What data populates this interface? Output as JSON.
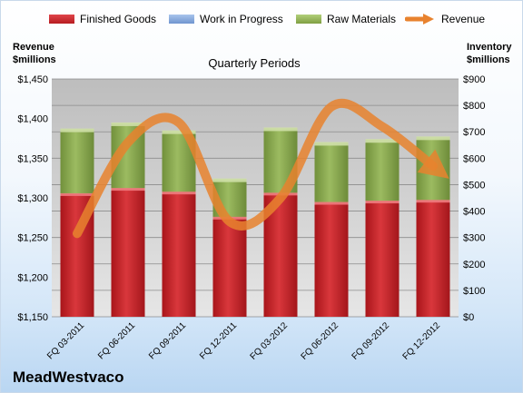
{
  "legend": {
    "finished_goods": "Finished Goods",
    "work_in_progress": "Work in Progress",
    "raw_materials": "Raw Materials",
    "revenue": "Revenue"
  },
  "left_axis_title": [
    "Revenue",
    "$millions"
  ],
  "right_axis_title": [
    "Inventory",
    "$millions"
  ],
  "subtitle": "Quarterly Periods",
  "brand": "MeadWestvaco",
  "colors": {
    "finished_goods": "#c62a2e",
    "work_in_progress": "#7ea1d6",
    "raw_materials": "#8fae54",
    "revenue": "#e8822e",
    "plot_bg": "#c0c0c0"
  },
  "chart_data": {
    "type": "bar",
    "stacked": true,
    "categories": [
      "FQ 03-2011",
      "FQ 06-2011",
      "FQ 09-2011",
      "FQ 12-2011",
      "FQ 03-2012",
      "FQ 06-2012",
      "FQ 09-2012",
      "FQ 12-2012"
    ],
    "series": [
      {
        "name": "Finished Goods",
        "axis": "right",
        "values": [
          464,
          484,
          470,
          375,
          466,
          431,
          436,
          439
        ]
      },
      {
        "name": "Work in Progress",
        "axis": "right",
        "values": [
          0,
          0,
          0,
          0,
          0,
          0,
          0,
          0
        ]
      },
      {
        "name": "Raw Materials",
        "axis": "right",
        "values": [
          245,
          248,
          232,
          145,
          247,
          227,
          233,
          240
        ]
      },
      {
        "name": "Revenue",
        "axis": "left",
        "type": "line",
        "values": [
          1255,
          1370,
          1395,
          1270,
          1300,
          1415,
          1390,
          1340
        ]
      }
    ],
    "left_axis": {
      "label": "Revenue $millions",
      "ylim": [
        1150,
        1450
      ],
      "ticks": [
        "$1,150",
        "$1,200",
        "$1,250",
        "$1,300",
        "$1,350",
        "$1,400",
        "$1,450"
      ]
    },
    "right_axis": {
      "label": "Inventory $millions",
      "ylim": [
        0,
        900
      ],
      "ticks": [
        "$0",
        "$100",
        "$200",
        "$300",
        "$400",
        "$500",
        "$600",
        "$700",
        "$800",
        "$900"
      ]
    },
    "xlabel": "Quarterly Periods",
    "grid": true,
    "legend_position": "top"
  }
}
